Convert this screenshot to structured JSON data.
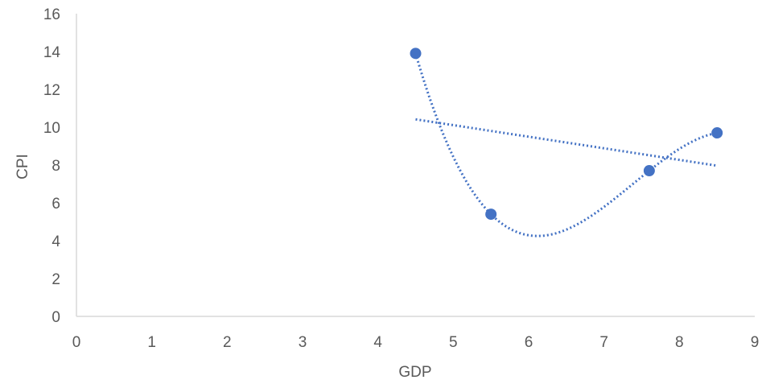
{
  "chart_data": {
    "type": "scatter",
    "title": "",
    "xlabel": "GDP",
    "ylabel": "CPI",
    "xlim": [
      0,
      9
    ],
    "ylim": [
      0,
      16
    ],
    "x_ticks": [
      0,
      1,
      2,
      3,
      4,
      5,
      6,
      7,
      8,
      9
    ],
    "y_ticks": [
      0,
      2,
      4,
      6,
      8,
      10,
      12,
      14,
      16
    ],
    "grid": false,
    "legend": "none",
    "series": [
      {
        "points": [
          {
            "x": 4.5,
            "y": 13.9
          },
          {
            "x": 5.5,
            "y": 5.4
          },
          {
            "x": 7.6,
            "y": 7.7
          },
          {
            "x": 8.5,
            "y": 9.7
          }
        ],
        "color": "#4472C4"
      }
    ],
    "trendlines": [
      {
        "kind": "linear",
        "style": "dotted",
        "color": "#4472C4"
      },
      {
        "kind": "polynomial-3",
        "style": "dotted",
        "color": "#4472C4"
      }
    ]
  },
  "colors": {
    "marker": "#4472C4",
    "axis": "#D9D9D9",
    "tick_text": "#595959"
  }
}
